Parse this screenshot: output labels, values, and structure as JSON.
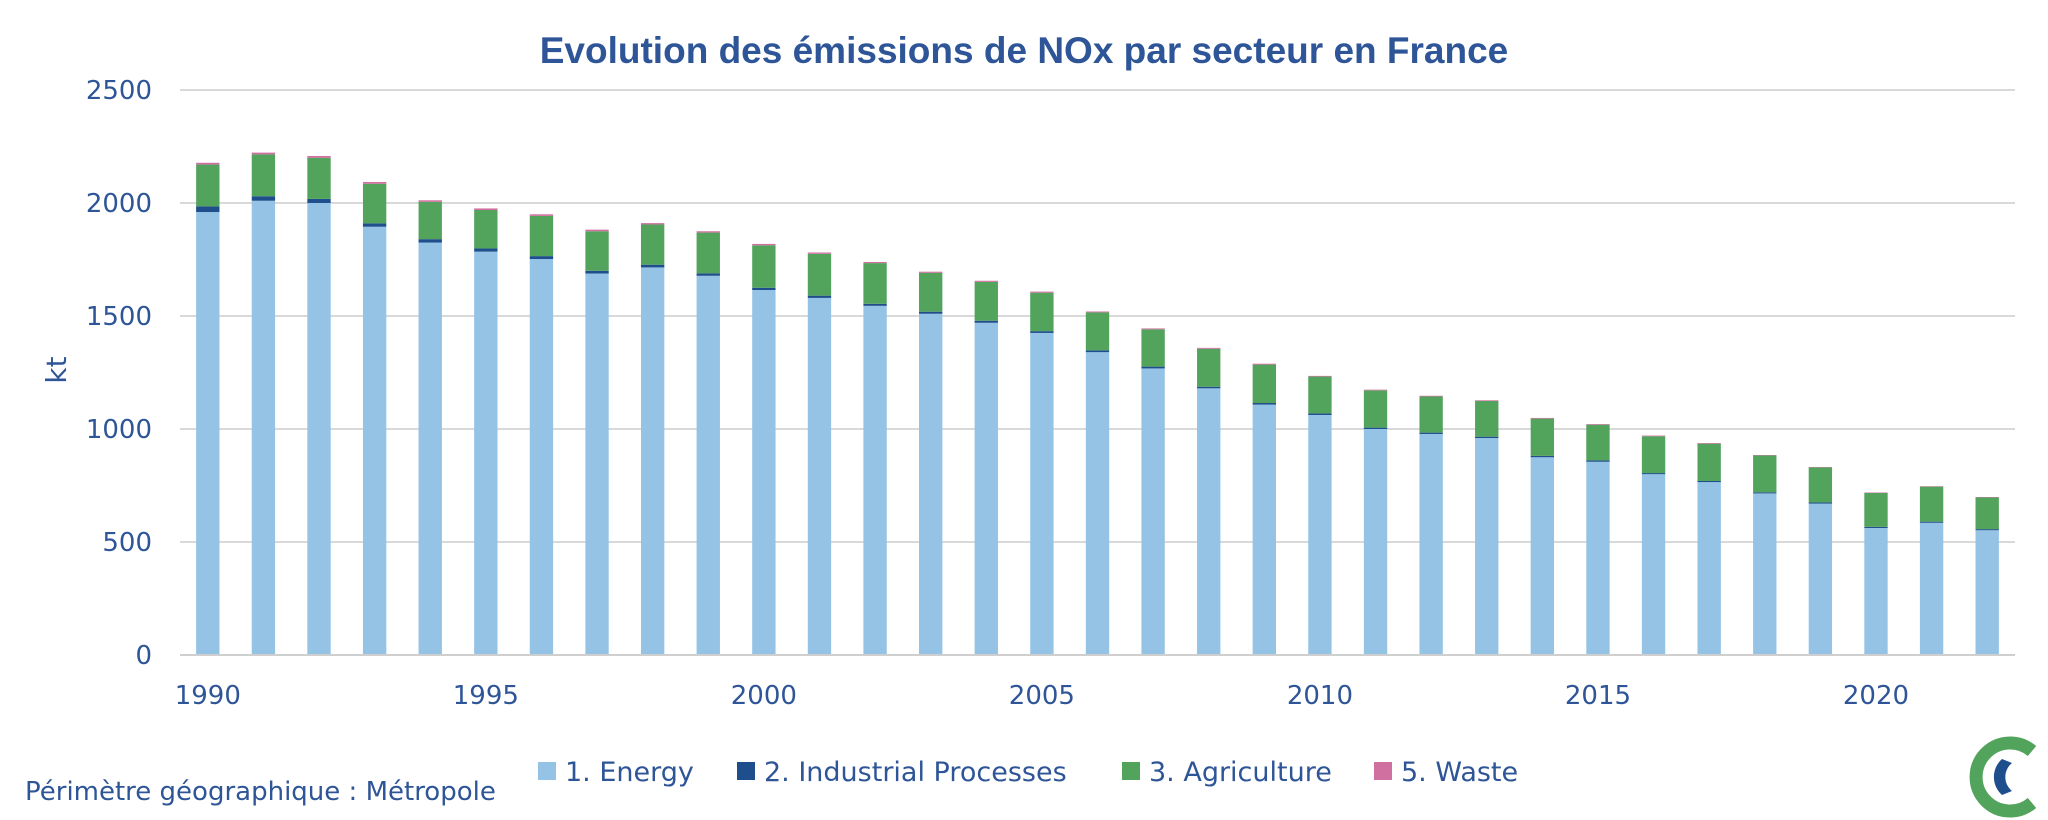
{
  "chart_data": {
    "type": "bar",
    "stacked": true,
    "title": "Evolution des émissions de NOx par secteur en France",
    "xlabel": "",
    "ylabel": "kt",
    "ylim": [
      0,
      2500
    ],
    "yticks": [
      0,
      500,
      1000,
      1500,
      2000,
      2500
    ],
    "xtick_labels": [
      "1990",
      "1995",
      "2000",
      "2005",
      "2010",
      "2015",
      "2020"
    ],
    "grid": true,
    "legend_position": "bottom",
    "categories": [
      1990,
      1991,
      1992,
      1993,
      1994,
      1995,
      1996,
      1997,
      1998,
      1999,
      2000,
      2001,
      2002,
      2003,
      2004,
      2005,
      2006,
      2007,
      2008,
      2009,
      2010,
      2011,
      2012,
      2013,
      2014,
      2015,
      2016,
      2017,
      2018,
      2019,
      2020,
      2021,
      2022
    ],
    "series": [
      {
        "name": "1. Energy",
        "color": "#94c3e6",
        "values": [
          1960,
          2010,
          2000,
          1895,
          1825,
          1785,
          1752,
          1688,
          1715,
          1678,
          1615,
          1580,
          1545,
          1510,
          1470,
          1425,
          1340,
          1268,
          1180,
          1108,
          1062,
          1000,
          978,
          960,
          875,
          855,
          800,
          765,
          715,
          670,
          562,
          585,
          552
        ]
      },
      {
        "name": "2.  Industrial Processes",
        "color": "#1f4e8c",
        "values": [
          25,
          20,
          18,
          15,
          15,
          14,
          13,
          12,
          12,
          11,
          10,
          10,
          9,
          9,
          9,
          8,
          8,
          8,
          7,
          7,
          7,
          6,
          6,
          6,
          6,
          6,
          5,
          5,
          5,
          5,
          5,
          5,
          5
        ]
      },
      {
        "name": "3.  Agriculture",
        "color": "#52a35c",
        "values": [
          185,
          185,
          182,
          175,
          165,
          170,
          178,
          175,
          178,
          180,
          188,
          185,
          180,
          172,
          172,
          170,
          168,
          165,
          168,
          170,
          163,
          165,
          160,
          158,
          165,
          158,
          163,
          165,
          163,
          155,
          150,
          155,
          140
        ]
      },
      {
        "name": "5.  Waste",
        "color": "#d070a0",
        "values": [
          8,
          8,
          8,
          8,
          7,
          7,
          7,
          7,
          6,
          6,
          6,
          6,
          5,
          5,
          5,
          5,
          4,
          4,
          4,
          4,
          3,
          3,
          3,
          3,
          3,
          3,
          3,
          3,
          2,
          2,
          2,
          2,
          2
        ]
      }
    ]
  },
  "footnote": "Périmètre géographique : Métropole",
  "logo_icon": "citepa-logo-icon"
}
